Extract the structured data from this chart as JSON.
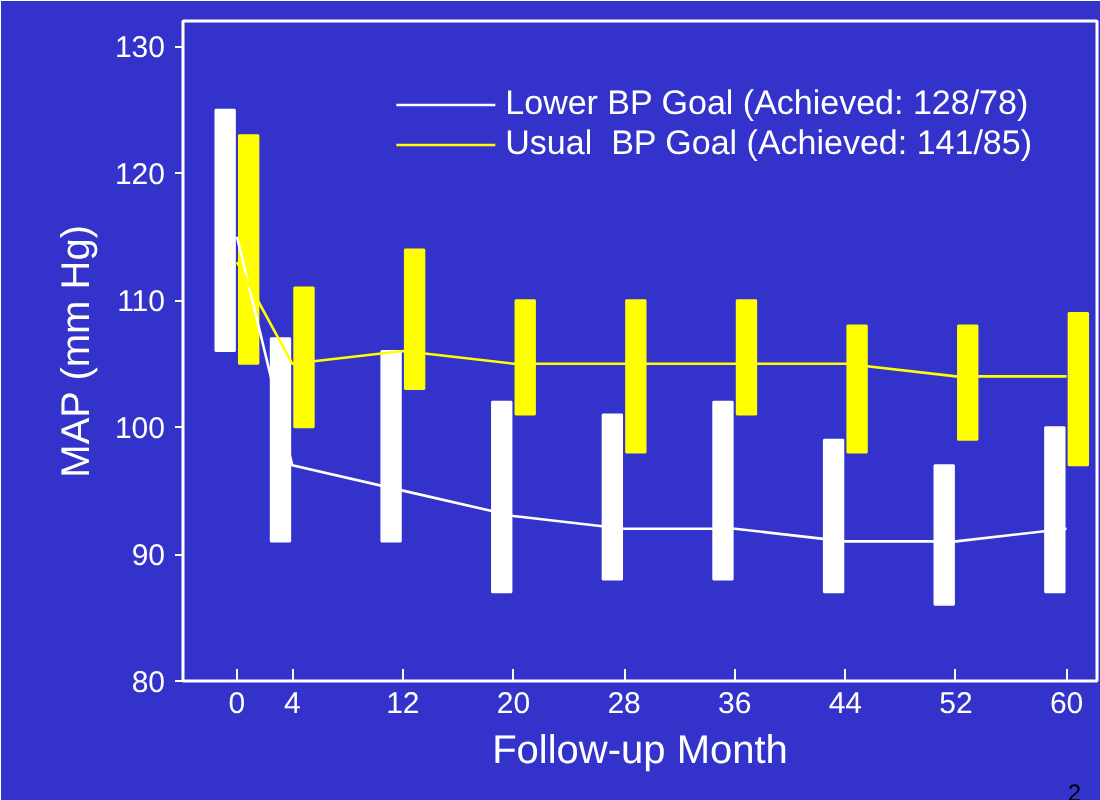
{
  "chart_data": {
    "type": "line",
    "xlabel": "Follow-up Month",
    "ylabel": "MAP (mm Hg)",
    "x": [
      0,
      4,
      12,
      20,
      28,
      36,
      44,
      52,
      60
    ],
    "series": [
      {
        "name": "Lower BP Goal (Achieved: 128/78)",
        "color": "#ffffff",
        "values": [
          115,
          97,
          95,
          93,
          92,
          92,
          91,
          91,
          92
        ]
      },
      {
        "name": "Usual  BP Goal (Achieved: 141/85)",
        "color": "#ffff00",
        "values": [
          113,
          105,
          106,
          105,
          105,
          105,
          105,
          104,
          104
        ]
      },
      {
        "type": "bar",
        "color": "#ffffff",
        "x": [
          -0.85,
          3.15,
          11.15,
          19.15,
          27.15,
          35.15,
          43.15,
          51.15,
          59.15
        ],
        "base": [
          106,
          91,
          91,
          87,
          88,
          88,
          87,
          86,
          87
        ],
        "values": [
          19,
          16,
          15,
          15,
          13,
          14,
          12,
          11,
          13
        ]
      },
      {
        "type": "bar",
        "color": "#ffff00",
        "x": [
          0.85,
          4.85,
          12.85,
          20.85,
          28.85,
          36.85,
          44.85,
          52.85,
          60.85
        ],
        "base": [
          105,
          100,
          103,
          101,
          98,
          101,
          98,
          99,
          97
        ],
        "values": [
          18,
          11,
          11,
          9,
          12,
          9,
          10,
          9,
          12
        ]
      }
    ],
    "xlim": [
      -3.9,
      62.2
    ],
    "ylim": [
      80,
      132
    ],
    "xticks": [
      0,
      4,
      12,
      20,
      28,
      36,
      44,
      52,
      60
    ],
    "yticks": [
      80,
      90,
      100,
      110,
      120,
      130
    ],
    "grid": false,
    "legend": "top right",
    "line_style": "solid",
    "annotations": [
      "2"
    ]
  }
}
